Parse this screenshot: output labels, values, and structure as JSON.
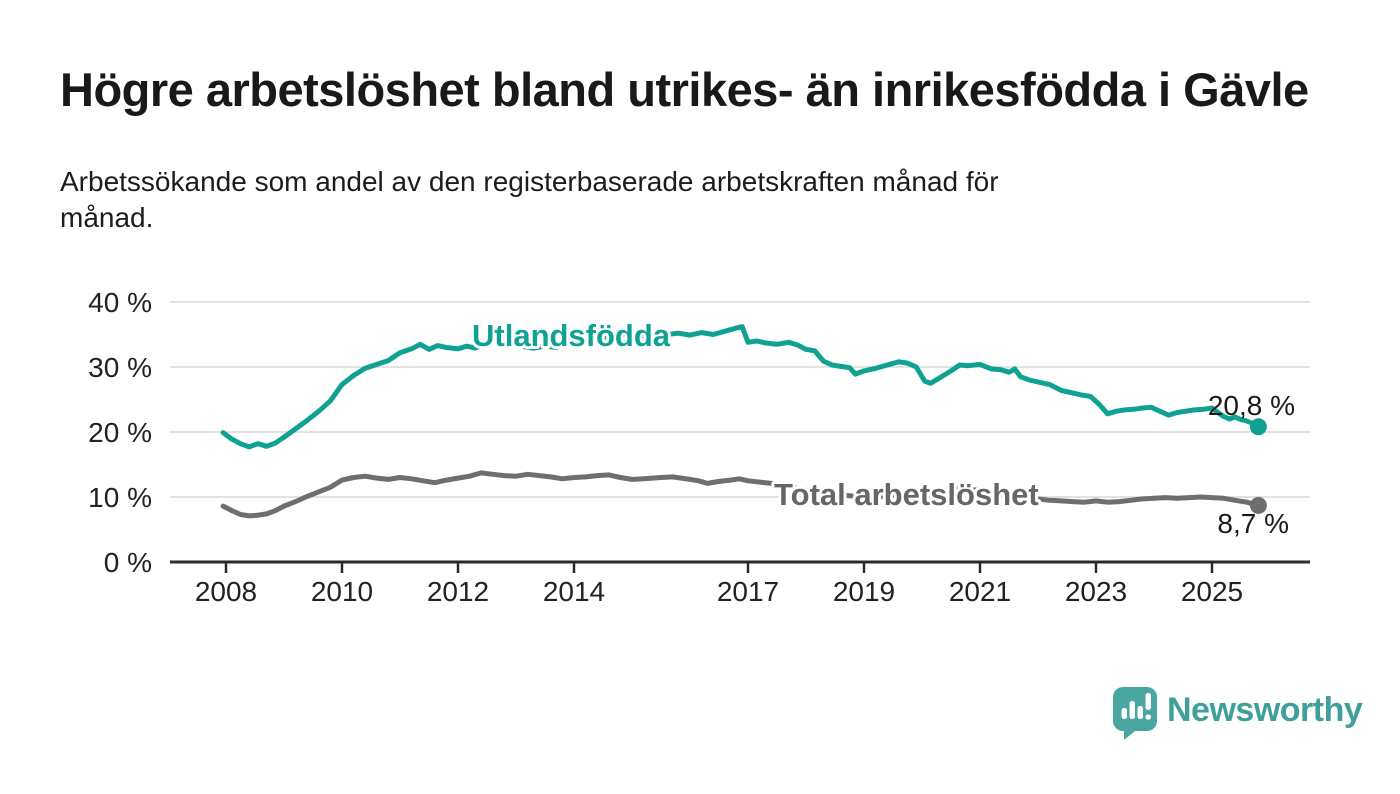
{
  "header": {
    "title": "Högre arbetslöshet bland utrikes- än inrikesfödda i Gävle",
    "subtitle_lines": [
      "Arbetssökande som andel av den registerbaserade arbetskraften månad för",
      "månad."
    ]
  },
  "footer": {
    "brand": "Newsworthy"
  },
  "colors": {
    "series_utlandsfodda": "#0fa293",
    "series_total": "#6e6e6e",
    "label_total": "#666666",
    "grid": "#d8d8d8",
    "axis": "#2b2b2b",
    "text": "#1a1a1a",
    "brand": "#3f9f9a"
  },
  "chart_data": {
    "type": "line",
    "unit": "%",
    "grid": true,
    "legend": "inline-labels",
    "ylim": [
      0,
      40
    ],
    "xlim": [
      2007.9,
      2026.7
    ],
    "yticks": [
      {
        "value": 40,
        "label": "40 %"
      },
      {
        "value": 30,
        "label": "30 %"
      },
      {
        "value": 20,
        "label": "20 %"
      },
      {
        "value": 10,
        "label": "10 %"
      },
      {
        "value": 0,
        "label": "0 %"
      }
    ],
    "xticks": [
      {
        "year": 2008,
        "label": "2008"
      },
      {
        "year": 2010,
        "label": "2010"
      },
      {
        "year": 2012,
        "label": "2012"
      },
      {
        "year": 2014,
        "label": "2014"
      },
      {
        "year": 2017,
        "label": "2017"
      },
      {
        "year": 2019,
        "label": "2019"
      },
      {
        "year": 2021,
        "label": "2021"
      },
      {
        "year": 2023,
        "label": "2023"
      },
      {
        "year": 2025,
        "label": "2025"
      }
    ],
    "series": [
      {
        "name": "Utlandsfödda",
        "color": "#0fa293",
        "end_label": "20,8 %",
        "end_value": 20.8,
        "points": [
          [
            2007.95,
            19.9
          ],
          [
            2008.1,
            18.9
          ],
          [
            2008.25,
            18.2
          ],
          [
            2008.4,
            17.7
          ],
          [
            2008.55,
            18.2
          ],
          [
            2008.7,
            17.8
          ],
          [
            2008.85,
            18.3
          ],
          [
            2009.0,
            19.2
          ],
          [
            2009.2,
            20.5
          ],
          [
            2009.4,
            21.8
          ],
          [
            2009.6,
            23.2
          ],
          [
            2009.8,
            24.8
          ],
          [
            2010.0,
            27.3
          ],
          [
            2010.2,
            28.7
          ],
          [
            2010.4,
            29.8
          ],
          [
            2010.6,
            30.4
          ],
          [
            2010.8,
            31.0
          ],
          [
            2011.0,
            32.2
          ],
          [
            2011.2,
            32.8
          ],
          [
            2011.35,
            33.5
          ],
          [
            2011.5,
            32.7
          ],
          [
            2011.65,
            33.3
          ],
          [
            2011.8,
            33.0
          ],
          [
            2012.0,
            32.8
          ],
          [
            2012.15,
            33.2
          ],
          [
            2012.3,
            32.9
          ],
          [
            2012.5,
            33.6
          ],
          [
            2012.7,
            34.1
          ],
          [
            2012.85,
            33.8
          ],
          [
            2013.0,
            33.9
          ],
          [
            2013.15,
            33.1
          ],
          [
            2013.3,
            32.9
          ],
          [
            2013.5,
            33.2
          ],
          [
            2013.7,
            33.0
          ],
          [
            2013.85,
            33.6
          ],
          [
            2014.0,
            34.2
          ],
          [
            2014.2,
            34.4
          ],
          [
            2014.4,
            34.8
          ],
          [
            2014.6,
            34.5
          ],
          [
            2014.8,
            34.9
          ],
          [
            2015.0,
            35.1
          ],
          [
            2015.2,
            34.8
          ],
          [
            2015.4,
            35.3
          ],
          [
            2015.6,
            35.0
          ],
          [
            2015.8,
            35.2
          ],
          [
            2016.0,
            34.9
          ],
          [
            2016.2,
            35.3
          ],
          [
            2016.4,
            35.0
          ],
          [
            2016.6,
            35.5
          ],
          [
            2016.8,
            36.0
          ],
          [
            2016.9,
            36.2
          ],
          [
            2017.0,
            33.8
          ],
          [
            2017.15,
            34.0
          ],
          [
            2017.3,
            33.7
          ],
          [
            2017.5,
            33.5
          ],
          [
            2017.7,
            33.8
          ],
          [
            2017.85,
            33.4
          ],
          [
            2018.0,
            32.7
          ],
          [
            2018.15,
            32.5
          ],
          [
            2018.3,
            30.9
          ],
          [
            2018.45,
            30.3
          ],
          [
            2018.6,
            30.1
          ],
          [
            2018.75,
            29.9
          ],
          [
            2018.85,
            28.9
          ],
          [
            2019.0,
            29.4
          ],
          [
            2019.2,
            29.8
          ],
          [
            2019.4,
            30.3
          ],
          [
            2019.6,
            30.8
          ],
          [
            2019.75,
            30.6
          ],
          [
            2019.9,
            30.0
          ],
          [
            2020.05,
            27.8
          ],
          [
            2020.15,
            27.5
          ],
          [
            2020.3,
            28.3
          ],
          [
            2020.5,
            29.4
          ],
          [
            2020.65,
            30.3
          ],
          [
            2020.8,
            30.2
          ],
          [
            2021.0,
            30.4
          ],
          [
            2021.2,
            29.7
          ],
          [
            2021.35,
            29.6
          ],
          [
            2021.5,
            29.2
          ],
          [
            2021.6,
            29.7
          ],
          [
            2021.7,
            28.5
          ],
          [
            2021.85,
            28.0
          ],
          [
            2022.0,
            27.7
          ],
          [
            2022.2,
            27.3
          ],
          [
            2022.4,
            26.4
          ],
          [
            2022.6,
            26.0
          ],
          [
            2022.75,
            25.7
          ],
          [
            2022.9,
            25.5
          ],
          [
            2023.05,
            24.3
          ],
          [
            2023.2,
            22.8
          ],
          [
            2023.35,
            23.2
          ],
          [
            2023.5,
            23.4
          ],
          [
            2023.65,
            23.5
          ],
          [
            2023.8,
            23.7
          ],
          [
            2023.95,
            23.8
          ],
          [
            2024.1,
            23.2
          ],
          [
            2024.25,
            22.6
          ],
          [
            2024.4,
            23.0
          ],
          [
            2024.55,
            23.2
          ],
          [
            2024.7,
            23.4
          ],
          [
            2024.85,
            23.5
          ],
          [
            2025.0,
            23.7
          ],
          [
            2025.1,
            23.0
          ],
          [
            2025.2,
            22.4
          ],
          [
            2025.3,
            22.0
          ],
          [
            2025.4,
            22.3
          ],
          [
            2025.5,
            21.9
          ],
          [
            2025.6,
            21.7
          ],
          [
            2025.7,
            21.3
          ],
          [
            2025.8,
            20.8
          ]
        ]
      },
      {
        "name": "Total arbetslöshet",
        "color": "#6e6e6e",
        "end_label": "8,7 %",
        "end_value": 8.7,
        "points": [
          [
            2007.95,
            8.6
          ],
          [
            2008.1,
            7.9
          ],
          [
            2008.25,
            7.3
          ],
          [
            2008.4,
            7.1
          ],
          [
            2008.55,
            7.2
          ],
          [
            2008.7,
            7.4
          ],
          [
            2008.85,
            7.9
          ],
          [
            2009.0,
            8.6
          ],
          [
            2009.2,
            9.3
          ],
          [
            2009.4,
            10.1
          ],
          [
            2009.6,
            10.8
          ],
          [
            2009.8,
            11.5
          ],
          [
            2010.0,
            12.6
          ],
          [
            2010.2,
            13.0
          ],
          [
            2010.4,
            13.2
          ],
          [
            2010.6,
            12.9
          ],
          [
            2010.8,
            12.7
          ],
          [
            2011.0,
            13.0
          ],
          [
            2011.2,
            12.8
          ],
          [
            2011.4,
            12.5
          ],
          [
            2011.6,
            12.2
          ],
          [
            2011.8,
            12.6
          ],
          [
            2012.0,
            12.9
          ],
          [
            2012.2,
            13.2
          ],
          [
            2012.4,
            13.7
          ],
          [
            2012.6,
            13.5
          ],
          [
            2012.8,
            13.3
          ],
          [
            2013.0,
            13.2
          ],
          [
            2013.2,
            13.5
          ],
          [
            2013.4,
            13.3
          ],
          [
            2013.6,
            13.1
          ],
          [
            2013.8,
            12.8
          ],
          [
            2014.0,
            13.0
          ],
          [
            2014.2,
            13.1
          ],
          [
            2014.4,
            13.3
          ],
          [
            2014.6,
            13.4
          ],
          [
            2014.8,
            13.0
          ],
          [
            2015.0,
            12.7
          ],
          [
            2015.2,
            12.8
          ],
          [
            2015.5,
            13.0
          ],
          [
            2015.7,
            13.1
          ],
          [
            2016.0,
            12.7
          ],
          [
            2016.15,
            12.5
          ],
          [
            2016.3,
            12.1
          ],
          [
            2016.5,
            12.4
          ],
          [
            2016.7,
            12.6
          ],
          [
            2016.85,
            12.8
          ],
          [
            2017.0,
            12.5
          ],
          [
            2017.2,
            12.3
          ],
          [
            2017.4,
            12.1
          ],
          [
            2017.6,
            11.8
          ],
          [
            2017.8,
            11.4
          ],
          [
            2018.0,
            11.1
          ],
          [
            2018.3,
            10.6
          ],
          [
            2018.6,
            10.3
          ],
          [
            2018.9,
            10.1
          ],
          [
            2019.2,
            10.0
          ],
          [
            2019.5,
            10.2
          ],
          [
            2019.8,
            10.4
          ],
          [
            2020.0,
            9.9
          ],
          [
            2020.3,
            10.5
          ],
          [
            2020.5,
            11.2
          ],
          [
            2020.7,
            11.3
          ],
          [
            2021.0,
            11.0
          ],
          [
            2021.3,
            10.4
          ],
          [
            2021.6,
            10.0
          ],
          [
            2021.9,
            9.8
          ],
          [
            2022.2,
            9.5
          ],
          [
            2022.4,
            9.4
          ],
          [
            2022.6,
            9.3
          ],
          [
            2022.8,
            9.2
          ],
          [
            2023.0,
            9.4
          ],
          [
            2023.2,
            9.2
          ],
          [
            2023.4,
            9.3
          ],
          [
            2023.6,
            9.5
          ],
          [
            2023.8,
            9.7
          ],
          [
            2024.0,
            9.8
          ],
          [
            2024.2,
            9.9
          ],
          [
            2024.4,
            9.8
          ],
          [
            2024.6,
            9.9
          ],
          [
            2024.8,
            10.0
          ],
          [
            2025.0,
            9.9
          ],
          [
            2025.2,
            9.8
          ],
          [
            2025.4,
            9.5
          ],
          [
            2025.6,
            9.2
          ],
          [
            2025.8,
            8.7
          ]
        ]
      }
    ]
  }
}
